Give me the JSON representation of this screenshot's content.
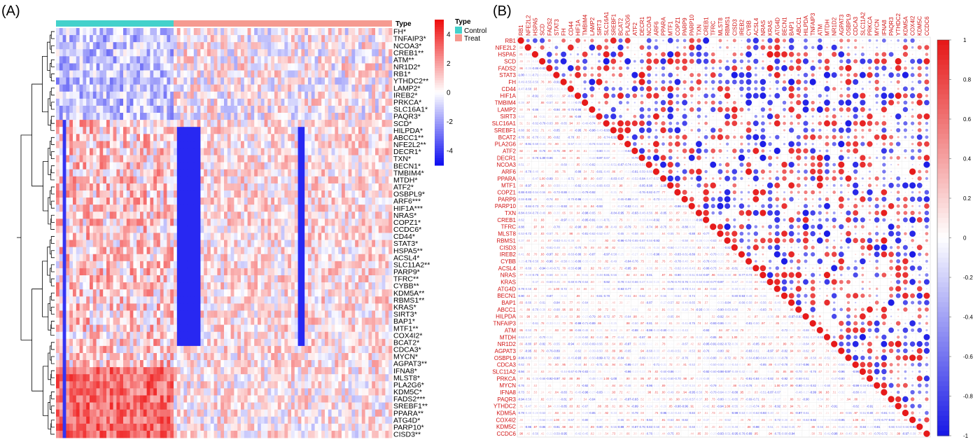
{
  "panels": {
    "a_label": "(A)",
    "b_label": "(B)"
  },
  "colors": {
    "control": "#44D1CB",
    "treat": "#F59A90",
    "heat_low": "#1010F0",
    "heat_mid": "#FFFFFF",
    "heat_high": "#EE1010",
    "corr_neg": "#1A1AE6",
    "corr_pos": "#E61A1A",
    "label_red": "#D01010"
  },
  "chart_data": [
    {
      "type": "heatmap",
      "annotation": {
        "title": "Type",
        "legend_title": "Type",
        "legend": [
          "Control",
          "Treat"
        ],
        "control_count": 35,
        "treat_count": 65
      },
      "rows": [
        "FH*",
        "TNFAIP3*",
        "NCOA3*",
        "CREB1**",
        "ATM**",
        "NR1D2*",
        "RB1*",
        "YTHDC2**",
        "LAMP2*",
        "IREB2*",
        "PRKCA*",
        "SLC16A1*",
        "PAQR3*",
        "SCD*",
        "HILPDA*",
        "ABCC1**",
        "NFE2L2**",
        "DECR1*",
        "TXN*",
        "BECN1*",
        "TMBIM4*",
        "MTDH*",
        "ATF2*",
        "OSBPL9*",
        "ARF6***",
        "HIF1A***",
        "NRAS*",
        "COPZ1*",
        "CCDC6*",
        "CD44*",
        "STAT3*",
        "HSPA5**",
        "ACSL4*",
        "SLC11A2**",
        "PARP9*",
        "TFRC**",
        "CYBB**",
        "KDM5A**",
        "RBMS1**",
        "KRAS*",
        "SIRT3*",
        "BAP1*",
        "MTF1**",
        "COX4I2*",
        "BCAT2*",
        "CDCA3*",
        "MYCN*",
        "AGPAT3**",
        "IFNA8*",
        "MLST8*",
        "PLA2G6*",
        "KDM5C*",
        "FADS2***",
        "SREBF1**",
        "PPARA**",
        "ATG4D*",
        "PARP10*",
        "CISD3**"
      ],
      "colorbar_ticks": [
        4,
        2,
        0,
        -2,
        -4
      ],
      "colorbar_range": [
        -5,
        5
      ]
    },
    {
      "type": "heatmap",
      "subtype": "correlation",
      "genes": [
        "RB1",
        "NFE2L2",
        "HSPA5",
        "SCD",
        "FADS2",
        "STAT3",
        "FH",
        "CD44",
        "HIF1A",
        "TMBIM4",
        "LAMP2",
        "SIRT3",
        "SLC16A1",
        "SREBF1",
        "BCAT2",
        "PLA2G6",
        "ATF2",
        "DECR1",
        "NCOA3",
        "ARF6",
        "PPARA",
        "MTF1",
        "COPZ1",
        "PARP9",
        "PARP10",
        "TXN",
        "CREB1",
        "TFRC",
        "MLST8",
        "RBMS1",
        "CISD3",
        "IREB2",
        "CYBB",
        "ACSL4",
        "NRAS",
        "KRAS",
        "ATG4D",
        "BECN1",
        "BAP1",
        "ABCC1",
        "HILPDA",
        "TNFAIP3",
        "ATM",
        "MTDH",
        "NR1D2",
        "AGPAT3",
        "OSBPL9",
        "CDCA3",
        "SLC11A2",
        "PRKCA",
        "MYCN",
        "IFNA8",
        "PAQR3",
        "YTHDC2",
        "KDM5A",
        "COX4I2",
        "KDM5C",
        "CCDC6"
      ],
      "colorbar_ticks": [
        1,
        0.8,
        0.6,
        0.4,
        0.2,
        0,
        -0.2,
        -0.4,
        -0.6,
        -0.8,
        -1
      ],
      "colorbar_range": [
        -1,
        1
      ]
    }
  ]
}
